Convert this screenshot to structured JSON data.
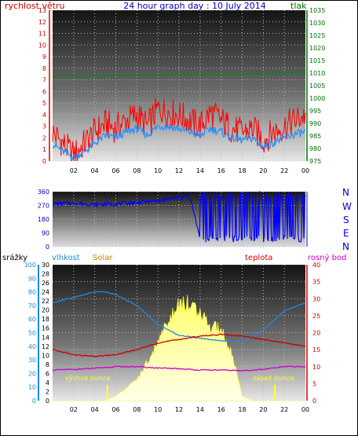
{
  "header": {
    "wind_label": "rychlost větru",
    "title": "24 hour graph day : 10 July 2014",
    "pressure_label": "tlak"
  },
  "legend": {
    "rain": "srážky",
    "humidity": "vlhkost",
    "solar": "Solar",
    "temp": "teplota",
    "dew": "rosný bod"
  },
  "annotations": {
    "sunrise": "východ slunce",
    "sunset": "západ slunce"
  },
  "colors": {
    "wind": "#ff0000",
    "wind_avg": "#1e90ff",
    "pressure": "#009000",
    "direction": "#0000ff",
    "humidity": "#1e88e5",
    "solar": "#ffff33",
    "temp": "#cc0000",
    "dew": "#cc00cc",
    "rain": "#1e88e5",
    "title": "#0000cc"
  },
  "chart_data": [
    {
      "type": "line",
      "panel": "wind_pressure",
      "x_ticks": [
        "02",
        "04",
        "06",
        "08",
        "10",
        "12",
        "14",
        "16",
        "18",
        "20",
        "22",
        "00"
      ],
      "y_left": {
        "label": "rychlost větru",
        "ticks": [
          0,
          1,
          2,
          3,
          4,
          5,
          6,
          7,
          8,
          9,
          10,
          11,
          12,
          13
        ],
        "ylim": [
          0,
          13
        ]
      },
      "y_right": {
        "label": "tlak",
        "ticks": [
          975,
          980,
          985,
          990,
          995,
          1000,
          1005,
          1010,
          1015,
          1020,
          1025,
          1030,
          1035
        ],
        "ylim": [
          975,
          1035
        ]
      },
      "x_range_hours": [
        0,
        24
      ],
      "series": [
        {
          "name": "gust",
          "axis": "left",
          "x": [
            0,
            1,
            2,
            3,
            4,
            5,
            6,
            7,
            8,
            9,
            10,
            11,
            12,
            13,
            14,
            15,
            16,
            17,
            18,
            19,
            20,
            21,
            22,
            23,
            24
          ],
          "values": [
            2.5,
            1.5,
            0.5,
            1.5,
            2.5,
            3.2,
            2.8,
            3.5,
            4.0,
            3.0,
            4.5,
            4.2,
            4.0,
            3.5,
            3.0,
            4.2,
            3.5,
            2.8,
            2.5,
            2.8,
            1.8,
            2.5,
            3.0,
            3.5,
            4.0
          ]
        },
        {
          "name": "average",
          "axis": "left",
          "x": [
            0,
            1,
            2,
            3,
            4,
            5,
            6,
            7,
            8,
            9,
            10,
            11,
            12,
            13,
            14,
            15,
            16,
            17,
            18,
            19,
            20,
            21,
            22,
            23,
            24
          ],
          "values": [
            1.5,
            0.8,
            0.3,
            0.8,
            1.5,
            2.2,
            2.0,
            2.5,
            2.8,
            2.2,
            3.0,
            3.0,
            2.8,
            2.5,
            2.2,
            2.8,
            2.5,
            2.0,
            1.8,
            2.0,
            1.2,
            1.6,
            2.0,
            2.3,
            2.5
          ]
        },
        {
          "name": "pressure",
          "axis": "right",
          "x": [
            0,
            3,
            6,
            9,
            12,
            15,
            18,
            21,
            24
          ],
          "values": [
            1008.7,
            1008.8,
            1008.9,
            1009.0,
            1009.2,
            1009.4,
            1009.6,
            1009.8,
            1010.1
          ]
        }
      ]
    },
    {
      "type": "line",
      "panel": "wind_direction",
      "y_left": {
        "ticks": [
          0,
          90,
          180,
          270,
          360
        ],
        "ylim": [
          0,
          360
        ]
      },
      "y_right_labels": [
        "N",
        "W",
        "S",
        "E",
        "N"
      ],
      "x_range_hours": [
        0,
        24
      ],
      "series": [
        {
          "name": "direction",
          "x": [
            0,
            2,
            4,
            6,
            8,
            10,
            12,
            13,
            14,
            15,
            16,
            17,
            18,
            19,
            20,
            21,
            22,
            23,
            24
          ],
          "values": [
            280,
            285,
            275,
            280,
            290,
            300,
            320,
            330,
            60,
            200,
            100,
            300,
            150,
            250,
            30,
            20,
            40,
            350,
            30
          ]
        }
      ]
    },
    {
      "type": "line",
      "panel": "temp_humidity_solar",
      "x_ticks": [
        "02",
        "04",
        "06",
        "08",
        "10",
        "12",
        "14",
        "16",
        "18",
        "20",
        "22",
        "00"
      ],
      "y_rain": {
        "label": "srážky",
        "ticks": [
          0,
          10,
          20,
          30,
          40,
          50,
          60,
          70,
          80,
          90,
          100
        ],
        "ylim": [
          0,
          100
        ]
      },
      "y_left2": {
        "ticks": [
          0,
          2,
          4,
          6,
          8,
          10,
          12,
          14,
          16,
          18,
          20,
          22,
          24,
          26,
          28,
          30
        ],
        "ylim": [
          0,
          30
        ]
      },
      "y_right": {
        "ticks": [
          0,
          5,
          10,
          15,
          20,
          25,
          30,
          35,
          40
        ],
        "ylim": [
          0,
          40
        ]
      },
      "x_range_hours": [
        0,
        24
      ],
      "series": [
        {
          "name": "vlhkost",
          "scale": "rain",
          "x": [
            0,
            2,
            4,
            5,
            6,
            8,
            10,
            12,
            14,
            16,
            18,
            20,
            22,
            24
          ],
          "values": [
            72,
            76,
            80,
            80,
            78,
            70,
            56,
            48,
            46,
            44,
            44,
            52,
            66,
            72
          ]
        },
        {
          "name": "Solar",
          "scale": "left2",
          "x": [
            0,
            5,
            6,
            8,
            10,
            11,
            12,
            13,
            14,
            15,
            16,
            17,
            18,
            19,
            24
          ],
          "values": [
            0,
            0,
            1,
            5,
            14,
            20,
            23,
            24,
            21,
            18,
            17,
            12,
            1,
            0,
            0
          ]
        },
        {
          "name": "teplota",
          "scale": "right",
          "x": [
            0,
            2,
            4,
            6,
            8,
            10,
            12,
            14,
            16,
            18,
            20,
            22,
            24
          ],
          "values": [
            15,
            13.5,
            13,
            13.5,
            15,
            17,
            18,
            19,
            19.5,
            19,
            18,
            17,
            16
          ]
        },
        {
          "name": "rosný bod",
          "scale": "right",
          "x": [
            0,
            2,
            4,
            6,
            8,
            10,
            12,
            14,
            16,
            18,
            20,
            22,
            24
          ],
          "values": [
            9,
            9.2,
            9.5,
            10,
            10,
            9.6,
            9.4,
            9,
            9,
            8.8,
            9.2,
            10,
            10
          ]
        },
        {
          "name": "srážky",
          "scale": "rain",
          "x": [
            0,
            24
          ],
          "values": [
            0,
            0
          ]
        }
      ],
      "markers": {
        "sunrise_hour": 5.2,
        "sunset_hour": 21.1
      }
    }
  ]
}
